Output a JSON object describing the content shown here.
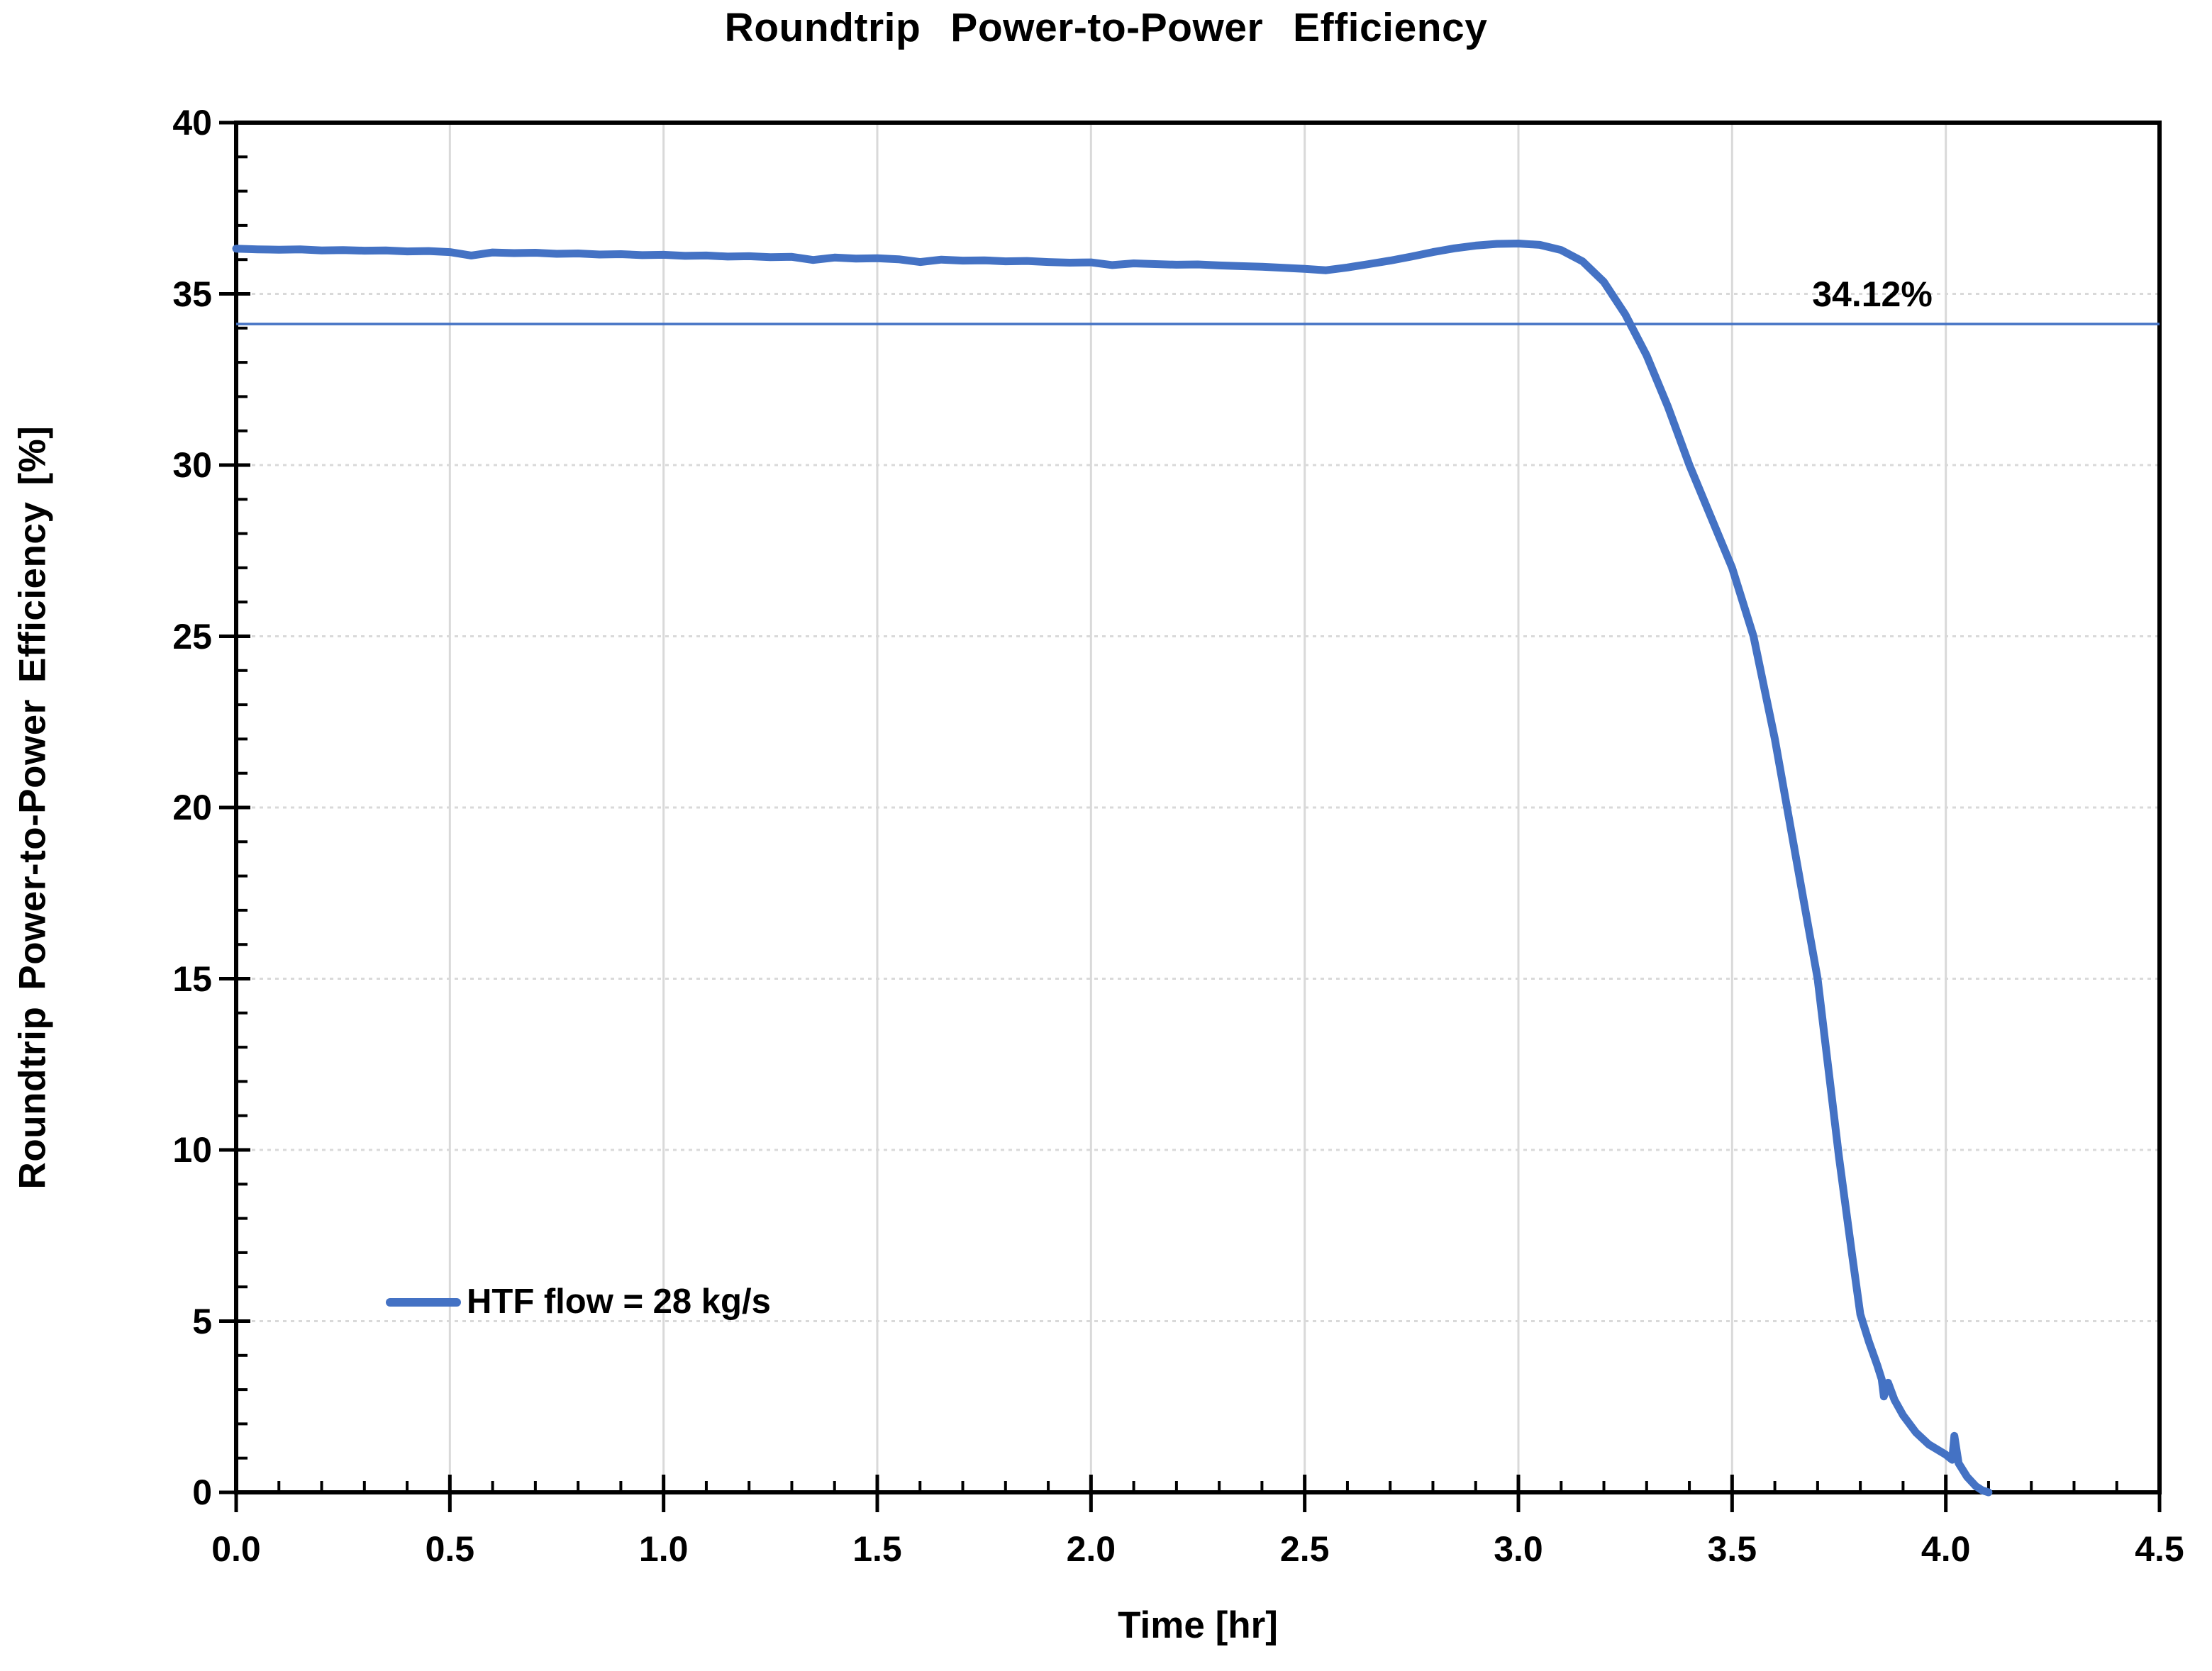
{
  "title": "Roundtrip Power-to-Power Efficiency",
  "colors": {
    "series": "#4472C4",
    "reference_line": "#4472C4",
    "grid": "#D9D9D9",
    "axis": "#000000",
    "text": "#000000",
    "background": "#FFFFFF"
  },
  "chart_data": {
    "type": "line",
    "title": "Roundtrip Power-to-Power Efficiency",
    "xlabel": "Time [hr]",
    "ylabel": "Roundtrip Power-to-Power Efficiency [%]",
    "grid": true,
    "legend_position": "inside-lower-left",
    "x_axis": {
      "label": "Time [hr]",
      "min": 0,
      "max": 4.5,
      "major_ticks": [
        0,
        0.5,
        1.0,
        1.5,
        2.0,
        2.5,
        3.0,
        3.5,
        4.0,
        4.5
      ],
      "tick_labels": [
        "0.0",
        "0.5",
        "1.0",
        "1.5",
        "2.0",
        "2.5",
        "3.0",
        "3.5",
        "4.0",
        "4.5"
      ],
      "minor_step": 0.1
    },
    "y_axis": {
      "label": "Roundtrip Power-to-Power Efficiency [%]",
      "min": 0,
      "max": 40,
      "major_ticks": [
        0,
        5,
        10,
        15,
        20,
        25,
        30,
        35,
        40
      ],
      "tick_labels": [
        "0",
        "5",
        "10",
        "15",
        "20",
        "25",
        "30",
        "35",
        "40"
      ],
      "minor_step": 1
    },
    "reference_line": {
      "value": 34.12,
      "label": "34.12%",
      "color": "#4472C4"
    },
    "legend": {
      "label": "HTF flow = 28 kg/s"
    },
    "series": [
      {
        "name": "HTF flow = 28 kg/s",
        "color": "#4472C4",
        "points": [
          [
            0.0,
            36.32
          ],
          [
            0.05,
            36.3
          ],
          [
            0.1,
            36.29
          ],
          [
            0.15,
            36.3
          ],
          [
            0.2,
            36.27
          ],
          [
            0.25,
            36.28
          ],
          [
            0.3,
            36.26
          ],
          [
            0.35,
            36.27
          ],
          [
            0.4,
            36.24
          ],
          [
            0.45,
            36.25
          ],
          [
            0.5,
            36.22
          ],
          [
            0.55,
            36.12
          ],
          [
            0.6,
            36.21
          ],
          [
            0.65,
            36.19
          ],
          [
            0.7,
            36.2
          ],
          [
            0.75,
            36.17
          ],
          [
            0.8,
            36.18
          ],
          [
            0.85,
            36.15
          ],
          [
            0.9,
            36.16
          ],
          [
            0.95,
            36.13
          ],
          [
            1.0,
            36.14
          ],
          [
            1.05,
            36.11
          ],
          [
            1.1,
            36.12
          ],
          [
            1.15,
            36.09
          ],
          [
            1.2,
            36.1
          ],
          [
            1.25,
            36.07
          ],
          [
            1.3,
            36.08
          ],
          [
            1.35,
            35.99
          ],
          [
            1.4,
            36.06
          ],
          [
            1.45,
            36.03
          ],
          [
            1.5,
            36.04
          ],
          [
            1.55,
            36.01
          ],
          [
            1.6,
            35.93
          ],
          [
            1.65,
            36.0
          ],
          [
            1.7,
            35.97
          ],
          [
            1.75,
            35.98
          ],
          [
            1.8,
            35.95
          ],
          [
            1.85,
            35.96
          ],
          [
            1.9,
            35.93
          ],
          [
            1.95,
            35.91
          ],
          [
            2.0,
            35.92
          ],
          [
            2.05,
            35.84
          ],
          [
            2.1,
            35.89
          ],
          [
            2.15,
            35.87
          ],
          [
            2.2,
            35.85
          ],
          [
            2.25,
            35.86
          ],
          [
            2.3,
            35.83
          ],
          [
            2.35,
            35.81
          ],
          [
            2.4,
            35.79
          ],
          [
            2.45,
            35.76
          ],
          [
            2.5,
            35.73
          ],
          [
            2.55,
            35.69
          ],
          [
            2.6,
            35.77
          ],
          [
            2.65,
            35.87
          ],
          [
            2.7,
            35.97
          ],
          [
            2.75,
            36.09
          ],
          [
            2.8,
            36.22
          ],
          [
            2.85,
            36.33
          ],
          [
            2.9,
            36.41
          ],
          [
            2.95,
            36.46
          ],
          [
            3.0,
            36.47
          ],
          [
            3.05,
            36.43
          ],
          [
            3.1,
            36.28
          ],
          [
            3.15,
            35.95
          ],
          [
            3.2,
            35.35
          ],
          [
            3.25,
            34.4
          ],
          [
            3.3,
            33.2
          ],
          [
            3.35,
            31.7
          ],
          [
            3.4,
            30.0
          ],
          [
            3.45,
            28.5
          ],
          [
            3.5,
            27.0
          ],
          [
            3.55,
            25.0
          ],
          [
            3.6,
            22.0
          ],
          [
            3.65,
            18.5
          ],
          [
            3.7,
            15.0
          ],
          [
            3.75,
            9.8
          ],
          [
            3.78,
            7.0
          ],
          [
            3.8,
            5.2
          ],
          [
            3.82,
            4.4
          ],
          [
            3.84,
            3.7
          ],
          [
            3.85,
            3.3
          ],
          [
            3.855,
            2.8
          ],
          [
            3.865,
            3.2
          ],
          [
            3.88,
            2.7
          ],
          [
            3.9,
            2.25
          ],
          [
            3.93,
            1.75
          ],
          [
            3.96,
            1.4
          ],
          [
            4.0,
            1.1
          ],
          [
            4.015,
            0.95
          ],
          [
            4.02,
            1.65
          ],
          [
            4.03,
            0.85
          ],
          [
            4.05,
            0.45
          ],
          [
            4.07,
            0.18
          ],
          [
            4.085,
            0.06
          ],
          [
            4.1,
            0.0
          ]
        ]
      }
    ]
  }
}
